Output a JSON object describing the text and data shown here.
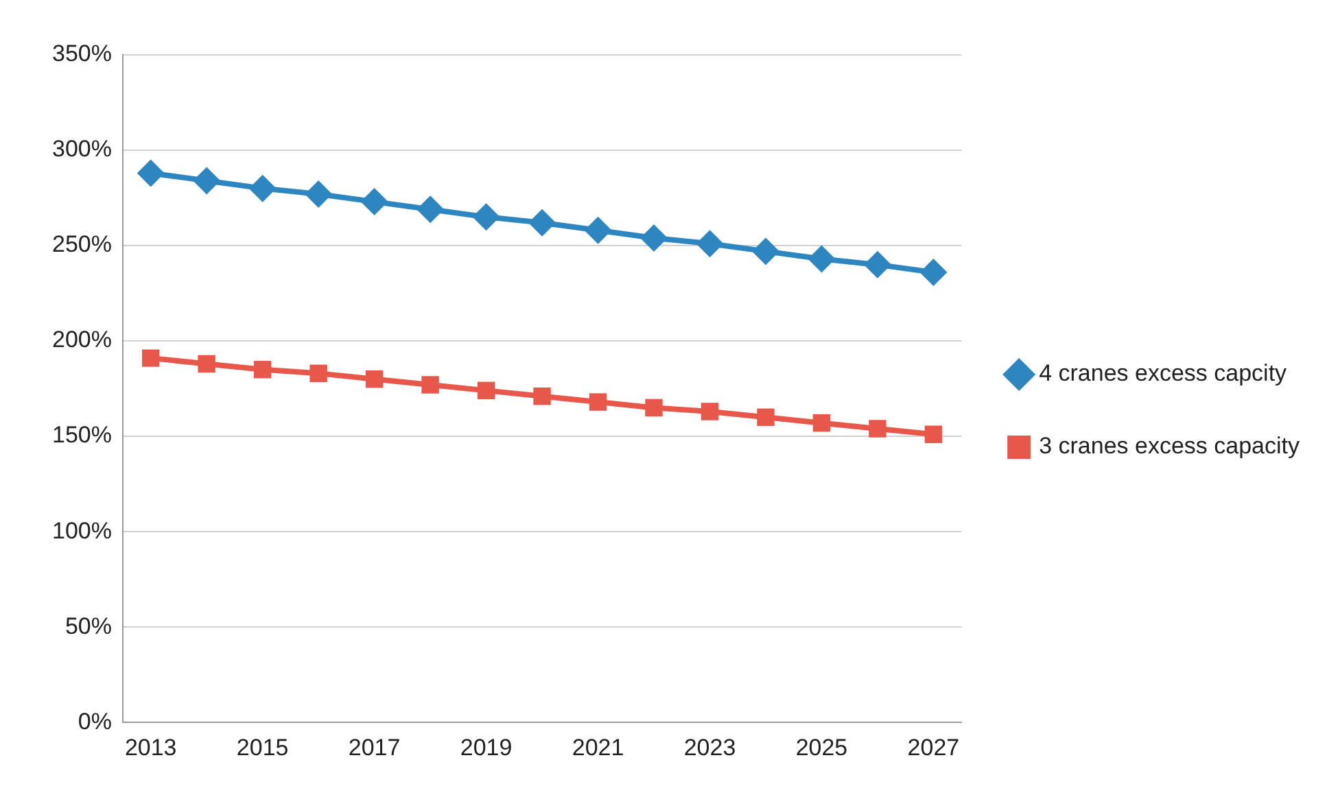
{
  "chart_data": {
    "type": "line",
    "categories": [
      "2013",
      null,
      "2015",
      null,
      "2017",
      null,
      "2019",
      null,
      "2021",
      null,
      "2023",
      null,
      "2025",
      null,
      "2027"
    ],
    "series": [
      {
        "name": "4 cranes excess capcity",
        "color": "#2e86c1",
        "marker": "diamond",
        "values": [
          288,
          284,
          280,
          277,
          273,
          269,
          265,
          262,
          258,
          254,
          251,
          247,
          243,
          240,
          236
        ]
      },
      {
        "name": "3 cranes excess capacity",
        "color": "#e8584a",
        "marker": "square",
        "values": [
          191,
          188,
          185,
          183,
          180,
          177,
          174,
          171,
          168,
          165,
          163,
          160,
          157,
          154,
          151
        ]
      }
    ],
    "ylim": [
      0,
      350
    ],
    "yticks": [
      {
        "value": 0,
        "label": "0%"
      },
      {
        "value": 50,
        "label": "50%"
      },
      {
        "value": 100,
        "label": "100%"
      },
      {
        "value": 150,
        "label": "150%"
      },
      {
        "value": 200,
        "label": "200%"
      },
      {
        "value": 250,
        "label": "250%"
      },
      {
        "value": 300,
        "label": "300%"
      },
      {
        "value": 350,
        "label": "350%"
      }
    ],
    "grid": "y",
    "legend": "right",
    "line_style": "solid"
  }
}
